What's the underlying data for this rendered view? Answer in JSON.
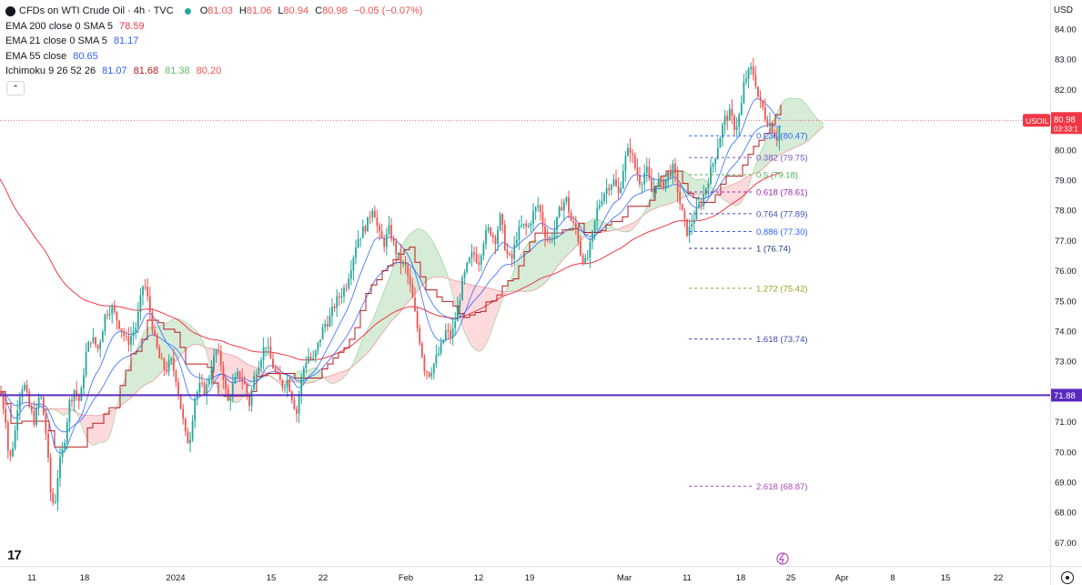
{
  "header": {
    "symbol_title": "CFDs on WTI Crude Oil · 4h · TVC",
    "ohlc": [
      {
        "label": "O",
        "value": "81.03"
      },
      {
        "label": "H",
        "value": "81.06"
      },
      {
        "label": "L",
        "value": "80.94"
      },
      {
        "label": "C",
        "value": "80.98"
      }
    ],
    "change": "−0.05 (−0.07%)"
  },
  "indicators": [
    {
      "label": "EMA 200 close 0 SMA 5",
      "values": [
        {
          "v": "78.59",
          "color": "#f23645"
        }
      ]
    },
    {
      "label": "EMA 21 close 0 SMA 5",
      "values": [
        {
          "v": "81.17",
          "color": "#2962ff"
        }
      ]
    },
    {
      "label": "EMA 55 close",
      "values": [
        {
          "v": "80.65",
          "color": "#2962ff"
        }
      ]
    },
    {
      "label": "Ichimoku 9 26 52 26",
      "values": [
        {
          "v": "81.07",
          "color": "#2962ff"
        },
        {
          "v": "81.68",
          "color": "#b71c1c"
        },
        {
          "v": "81.38",
          "color": "#66bb6a"
        },
        {
          "v": "80.20",
          "color": "#ef5350"
        }
      ]
    }
  ],
  "currency_label": "USD",
  "colors": {
    "up": "#26a69a",
    "down": "#ef5350",
    "ema200": "#f23645",
    "ema_blue": "#2962ff",
    "support": "#5b2bbf",
    "price_tag": "#f23645",
    "cloud_green": "#c8e6c9",
    "cloud_red": "#ffcdd2"
  },
  "price_tag": {
    "symbol": "USOIL",
    "price": "80.98",
    "countdown": "03:33:1"
  },
  "support_tag": "71.88",
  "chart_data": {
    "type": "candlestick",
    "title": "CFDs on WTI Crude Oil · 4h · TVC",
    "ylim": [
      66.6,
      84.3
    ],
    "y_ticks": [
      "84.00",
      "83.00",
      "82.00",
      "81.00",
      "80.00",
      "79.00",
      "78.00",
      "77.00",
      "76.00",
      "75.00",
      "74.00",
      "73.00",
      "72.00",
      "71.00",
      "70.00",
      "69.00",
      "68.00",
      "67.00"
    ],
    "x_ticks": [
      "11",
      "18",
      "2024",
      "15",
      "22",
      "Feb",
      "12",
      "19",
      "Mar",
      "11",
      "18",
      "25",
      "Apr",
      "8",
      "15",
      "22"
    ],
    "last_price": 80.98,
    "support_level": 71.88,
    "fibonacci": [
      {
        "label": "0.236 (80.47)",
        "value": 80.47,
        "color": "#2962ff"
      },
      {
        "label": "0.382 (79.75)",
        "value": 79.75,
        "color": "#7e57c2"
      },
      {
        "label": "0.5 (79.18)",
        "value": 79.18,
        "color": "#4caf50"
      },
      {
        "label": "0.618 (78.61)",
        "value": 78.61,
        "color": "#9c27b0"
      },
      {
        "label": "0.764 (77.89)",
        "value": 77.89,
        "color": "#3f51b5"
      },
      {
        "label": "0.886 (77.30)",
        "value": 77.3,
        "color": "#2962ff"
      },
      {
        "label": "1 (76.74)",
        "value": 76.74,
        "color": "#1e3a8a"
      },
      {
        "label": "1.272 (75.42)",
        "value": 75.42,
        "color": "#9e9d24"
      },
      {
        "label": "1.618 (73.74)",
        "value": 73.74,
        "color": "#3949ab"
      },
      {
        "label": "2.618 (68.87)",
        "value": 68.87,
        "color": "#ab47bc"
      }
    ],
    "path_points": [
      [
        0,
        72.0
      ],
      [
        6,
        71.2
      ],
      [
        10,
        69.6
      ],
      [
        16,
        70.5
      ],
      [
        20,
        71.8
      ],
      [
        26,
        72.3
      ],
      [
        32,
        71.5
      ],
      [
        38,
        71.0
      ],
      [
        44,
        72.0
      ],
      [
        50,
        70.8
      ],
      [
        56,
        68.5
      ],
      [
        60,
        68.2
      ],
      [
        64,
        69.4
      ],
      [
        70,
        70.2
      ],
      [
        76,
        71.6
      ],
      [
        82,
        72.1
      ],
      [
        88,
        71.6
      ],
      [
        94,
        73.2
      ],
      [
        100,
        73.8
      ],
      [
        108,
        73.4
      ],
      [
        116,
        74.6
      ],
      [
        122,
        74.8
      ],
      [
        130,
        74.3
      ],
      [
        140,
        73.6
      ],
      [
        150,
        74.2
      ],
      [
        158,
        75.7
      ],
      [
        164,
        74.8
      ],
      [
        170,
        73.7
      ],
      [
        176,
        73.0
      ],
      [
        182,
        72.7
      ],
      [
        188,
        73.0
      ],
      [
        194,
        72.4
      ],
      [
        198,
        71.6
      ],
      [
        204,
        70.5
      ],
      [
        208,
        70.3
      ],
      [
        214,
        71.8
      ],
      [
        220,
        72.2
      ],
      [
        226,
        72.0
      ],
      [
        232,
        72.8
      ],
      [
        238,
        73.4
      ],
      [
        244,
        72.8
      ],
      [
        250,
        71.6
      ],
      [
        256,
        72.2
      ],
      [
        262,
        72.6
      ],
      [
        268,
        72.3
      ],
      [
        274,
        71.6
      ],
      [
        280,
        72.6
      ],
      [
        286,
        73.1
      ],
      [
        292,
        73.6
      ],
      [
        298,
        73.0
      ],
      [
        304,
        72.5
      ],
      [
        310,
        72.2
      ],
      [
        316,
        72.4
      ],
      [
        322,
        71.7
      ],
      [
        326,
        71.3
      ],
      [
        332,
        72.6
      ],
      [
        338,
        73.2
      ],
      [
        344,
        73.0
      ],
      [
        350,
        73.6
      ],
      [
        356,
        74.2
      ],
      [
        362,
        74.4
      ],
      [
        368,
        74.9
      ],
      [
        374,
        75.2
      ],
      [
        380,
        75.5
      ],
      [
        386,
        76.2
      ],
      [
        392,
        77.0
      ],
      [
        398,
        77.3
      ],
      [
        404,
        77.6
      ],
      [
        410,
        78.2
      ],
      [
        416,
        77.2
      ],
      [
        422,
        76.9
      ],
      [
        428,
        77.4
      ],
      [
        434,
        76.7
      ],
      [
        440,
        76.3
      ],
      [
        446,
        76.1
      ],
      [
        452,
        75.3
      ],
      [
        458,
        74.2
      ],
      [
        462,
        73.6
      ],
      [
        466,
        72.8
      ],
      [
        472,
        72.6
      ],
      [
        478,
        73.0
      ],
      [
        484,
        73.4
      ],
      [
        490,
        74.0
      ],
      [
        496,
        73.8
      ],
      [
        502,
        74.6
      ],
      [
        508,
        75.6
      ],
      [
        514,
        76.2
      ],
      [
        520,
        76.6
      ],
      [
        526,
        76.3
      ],
      [
        532,
        77.1
      ],
      [
        538,
        77.4
      ],
      [
        544,
        77.0
      ],
      [
        550,
        77.8
      ],
      [
        556,
        76.6
      ],
      [
        562,
        76.3
      ],
      [
        568,
        77.2
      ],
      [
        574,
        77.5
      ],
      [
        580,
        77.4
      ],
      [
        586,
        77.9
      ],
      [
        592,
        78.2
      ],
      [
        598,
        77.3
      ],
      [
        604,
        77.0
      ],
      [
        610,
        77.4
      ],
      [
        616,
        78.1
      ],
      [
        622,
        78.4
      ],
      [
        628,
        77.6
      ],
      [
        634,
        77.3
      ],
      [
        638,
        76.6
      ],
      [
        644,
        76.2
      ],
      [
        650,
        77.0
      ],
      [
        656,
        78.0
      ],
      [
        662,
        78.5
      ],
      [
        668,
        78.8
      ],
      [
        674,
        79.0
      ],
      [
        680,
        78.5
      ],
      [
        686,
        79.6
      ],
      [
        692,
        80.1
      ],
      [
        698,
        79.4
      ],
      [
        704,
        78.9
      ],
      [
        710,
        79.4
      ],
      [
        716,
        78.6
      ],
      [
        722,
        79.0
      ],
      [
        728,
        78.8
      ],
      [
        734,
        79.2
      ],
      [
        740,
        79.4
      ],
      [
        744,
        78.8
      ],
      [
        748,
        78.1
      ],
      [
        752,
        77.6
      ],
      [
        756,
        77.2
      ],
      [
        760,
        77.6
      ],
      [
        766,
        78.0
      ],
      [
        772,
        78.4
      ],
      [
        778,
        79.0
      ],
      [
        784,
        79.6
      ],
      [
        790,
        80.3
      ],
      [
        796,
        81.0
      ],
      [
        802,
        81.2
      ],
      [
        808,
        80.7
      ],
      [
        814,
        81.3
      ],
      [
        818,
        82.3
      ],
      [
        822,
        82.5
      ],
      [
        826,
        82.7
      ],
      [
        830,
        82.3
      ],
      [
        834,
        81.6
      ],
      [
        838,
        81.4
      ],
      [
        842,
        81.0
      ],
      [
        846,
        80.9
      ],
      [
        850,
        80.6
      ],
      [
        854,
        80.4
      ],
      [
        858,
        80.98
      ]
    ]
  }
}
